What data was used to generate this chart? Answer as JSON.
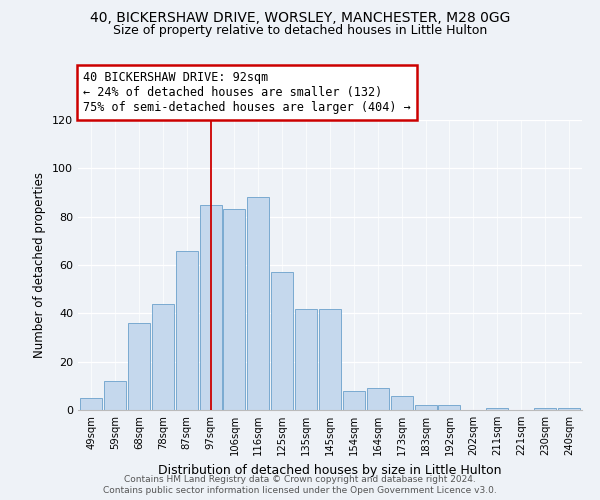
{
  "title": "40, BICKERSHAW DRIVE, WORSLEY, MANCHESTER, M28 0GG",
  "subtitle": "Size of property relative to detached houses in Little Hulton",
  "xlabel": "Distribution of detached houses by size in Little Hulton",
  "ylabel": "Number of detached properties",
  "bar_labels": [
    "49sqm",
    "59sqm",
    "68sqm",
    "78sqm",
    "87sqm",
    "97sqm",
    "106sqm",
    "116sqm",
    "125sqm",
    "135sqm",
    "145sqm",
    "154sqm",
    "164sqm",
    "173sqm",
    "183sqm",
    "192sqm",
    "202sqm",
    "211sqm",
    "221sqm",
    "230sqm",
    "240sqm"
  ],
  "bar_values": [
    5,
    12,
    36,
    44,
    66,
    85,
    83,
    88,
    57,
    42,
    42,
    8,
    9,
    6,
    2,
    2,
    0,
    1,
    0,
    1,
    1
  ],
  "bar_color": "#c5d8ed",
  "bar_edge_color": "#7aaad0",
  "ylim": [
    0,
    120
  ],
  "yticks": [
    0,
    20,
    40,
    60,
    80,
    100,
    120
  ],
  "vline_x_index": 5,
  "vline_color": "#cc0000",
  "annotation_title": "40 BICKERSHAW DRIVE: 92sqm",
  "annotation_line1": "← 24% of detached houses are smaller (132)",
  "annotation_line2": "75% of semi-detached houses are larger (404) →",
  "annotation_box_color": "#ffffff",
  "annotation_box_edge": "#cc0000",
  "footer1": "Contains HM Land Registry data © Crown copyright and database right 2024.",
  "footer2": "Contains public sector information licensed under the Open Government Licence v3.0.",
  "bg_color": "#eef2f7"
}
